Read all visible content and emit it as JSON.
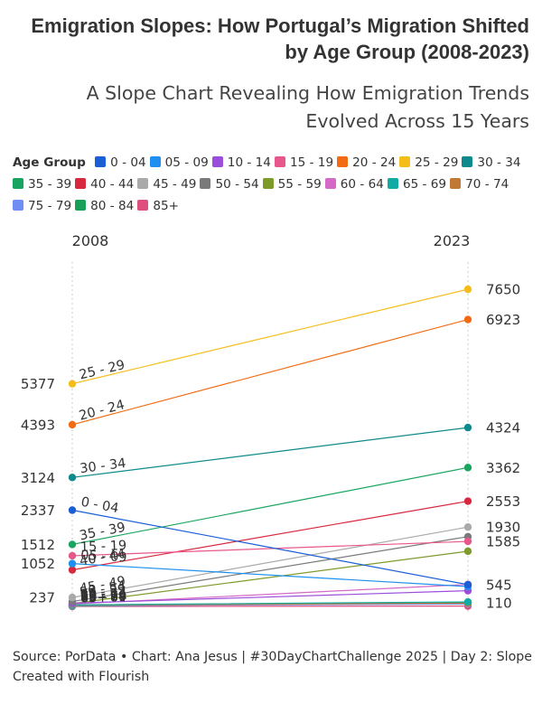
{
  "header": {
    "title": "Emigration Slopes: How Portugal’s Migration Shifted by Age Group (2008-2023)",
    "subtitle": "A Slope Chart Revealing How Emigration Trends Evolved Across 15 Years"
  },
  "legend": {
    "title": "Age Group"
  },
  "chart_data": {
    "type": "slope",
    "title": "Emigration Slopes: How Portugal’s Migration Shifted by Age Group (2008-2023)",
    "subtitle": "A Slope Chart Revealing How Emigration Trends Evolved Across 15 Years",
    "start_label": "2008",
    "end_label": "2023",
    "ylim": [
      0,
      8000
    ],
    "value_labels_start": [
      "5377",
      "4393",
      "3124",
      "2337",
      "1512",
      "1052",
      "237"
    ],
    "value_labels_end": [
      "7650",
      "6923",
      "4324",
      "3362",
      "2553",
      "1930",
      "1585",
      "545",
      "110"
    ],
    "series": [
      {
        "name": "0 - 04",
        "color": "#1a5fd6",
        "start": 2337,
        "end": 545
      },
      {
        "name": "05 - 09",
        "color": "#1e90ef",
        "start": 1052,
        "end": 500
      },
      {
        "name": "10 - 14",
        "color": "#9b4ddb",
        "start": 100,
        "end": 400
      },
      {
        "name": "15 - 19",
        "color": "#e8578b",
        "start": 1240,
        "end": 1585
      },
      {
        "name": "20 - 24",
        "color": "#f26b12",
        "start": 4393,
        "end": 6923
      },
      {
        "name": "25 - 29",
        "color": "#f5bd19",
        "start": 5377,
        "end": 7650
      },
      {
        "name": "30 - 34",
        "color": "#0c8a8c",
        "start": 3124,
        "end": 4324
      },
      {
        "name": "35 - 39",
        "color": "#19a561",
        "start": 1512,
        "end": 3362
      },
      {
        "name": "40 - 44",
        "color": "#d8283d",
        "start": 900,
        "end": 2553
      },
      {
        "name": "45 - 49",
        "color": "#aaaaaa",
        "start": 237,
        "end": 1930
      },
      {
        "name": "50 - 54",
        "color": "#7a7a7a",
        "start": 140,
        "end": 1700
      },
      {
        "name": "55 - 59",
        "color": "#7e9a2a",
        "start": 90,
        "end": 1350
      },
      {
        "name": "60 - 64",
        "color": "#d46ac6",
        "start": 80,
        "end": 550
      },
      {
        "name": "65 - 69",
        "color": "#12aba3",
        "start": 60,
        "end": 130
      },
      {
        "name": "70 - 74",
        "color": "#c07a35",
        "start": 50,
        "end": 100
      },
      {
        "name": "75 - 79",
        "color": "#6f8df2",
        "start": 40,
        "end": 80
      },
      {
        "name": "80 - 84",
        "color": "#19a058",
        "start": 30,
        "end": 110
      },
      {
        "name": "85+",
        "color": "#df4f7e",
        "start": 20,
        "end": 30
      }
    ],
    "line_labels": [
      "25 - 29",
      "20 - 24",
      "30 - 34",
      "0 - 04",
      "35 - 39",
      "15 - 19",
      "05 - 09",
      "40 - 44",
      "45 - 49",
      "10 - 14",
      "50 - 54",
      "55 - 59",
      "60 - 64",
      "65 - 69",
      "70 - 74",
      "75 - 79",
      "80 - 84",
      "85+"
    ]
  },
  "footer": {
    "source": "Source: PorData • Chart: Ana Jesus | #30DayChartChallenge 2025 | Day 2: Slope",
    "credit": "Created with Flourish"
  }
}
